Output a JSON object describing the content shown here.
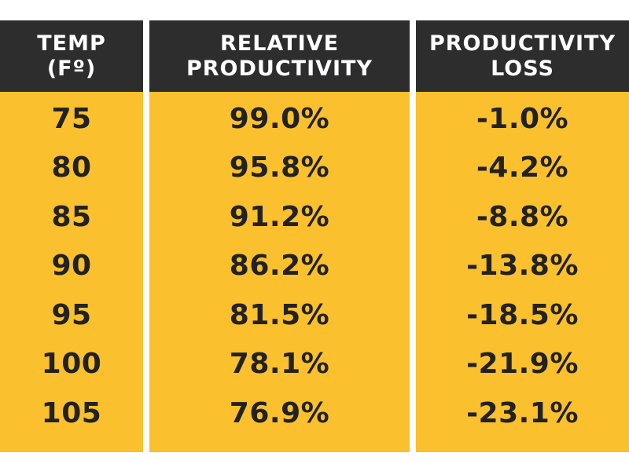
{
  "table": {
    "headers": {
      "temp": [
        "TEMP",
        "(Fº)"
      ],
      "relative": [
        "RELATIVE",
        "PRODUCTIVITY"
      ],
      "loss": [
        "PRODUCTIVITY",
        "LOSS"
      ]
    }
  },
  "colors": {
    "header_bg": "#2d2d2d",
    "header_text": "#ffffff",
    "body_bg": "#fbc02d",
    "body_text": "#222222"
  },
  "chart_data": {
    "type": "table",
    "columns": [
      "TEMP (Fº)",
      "RELATIVE PRODUCTIVITY",
      "PRODUCTIVITY LOSS"
    ],
    "rows": [
      [
        "75",
        "99.0%",
        "-1.0%"
      ],
      [
        "80",
        "95.8%",
        "-4.2%"
      ],
      [
        "85",
        "91.2%",
        "-8.8%"
      ],
      [
        "90",
        "86.2%",
        "-13.8%"
      ],
      [
        "95",
        "81.5%",
        "-18.5%"
      ],
      [
        "100",
        "78.1%",
        "-21.9%"
      ],
      [
        "105",
        "76.9%",
        "-23.1%"
      ]
    ]
  }
}
